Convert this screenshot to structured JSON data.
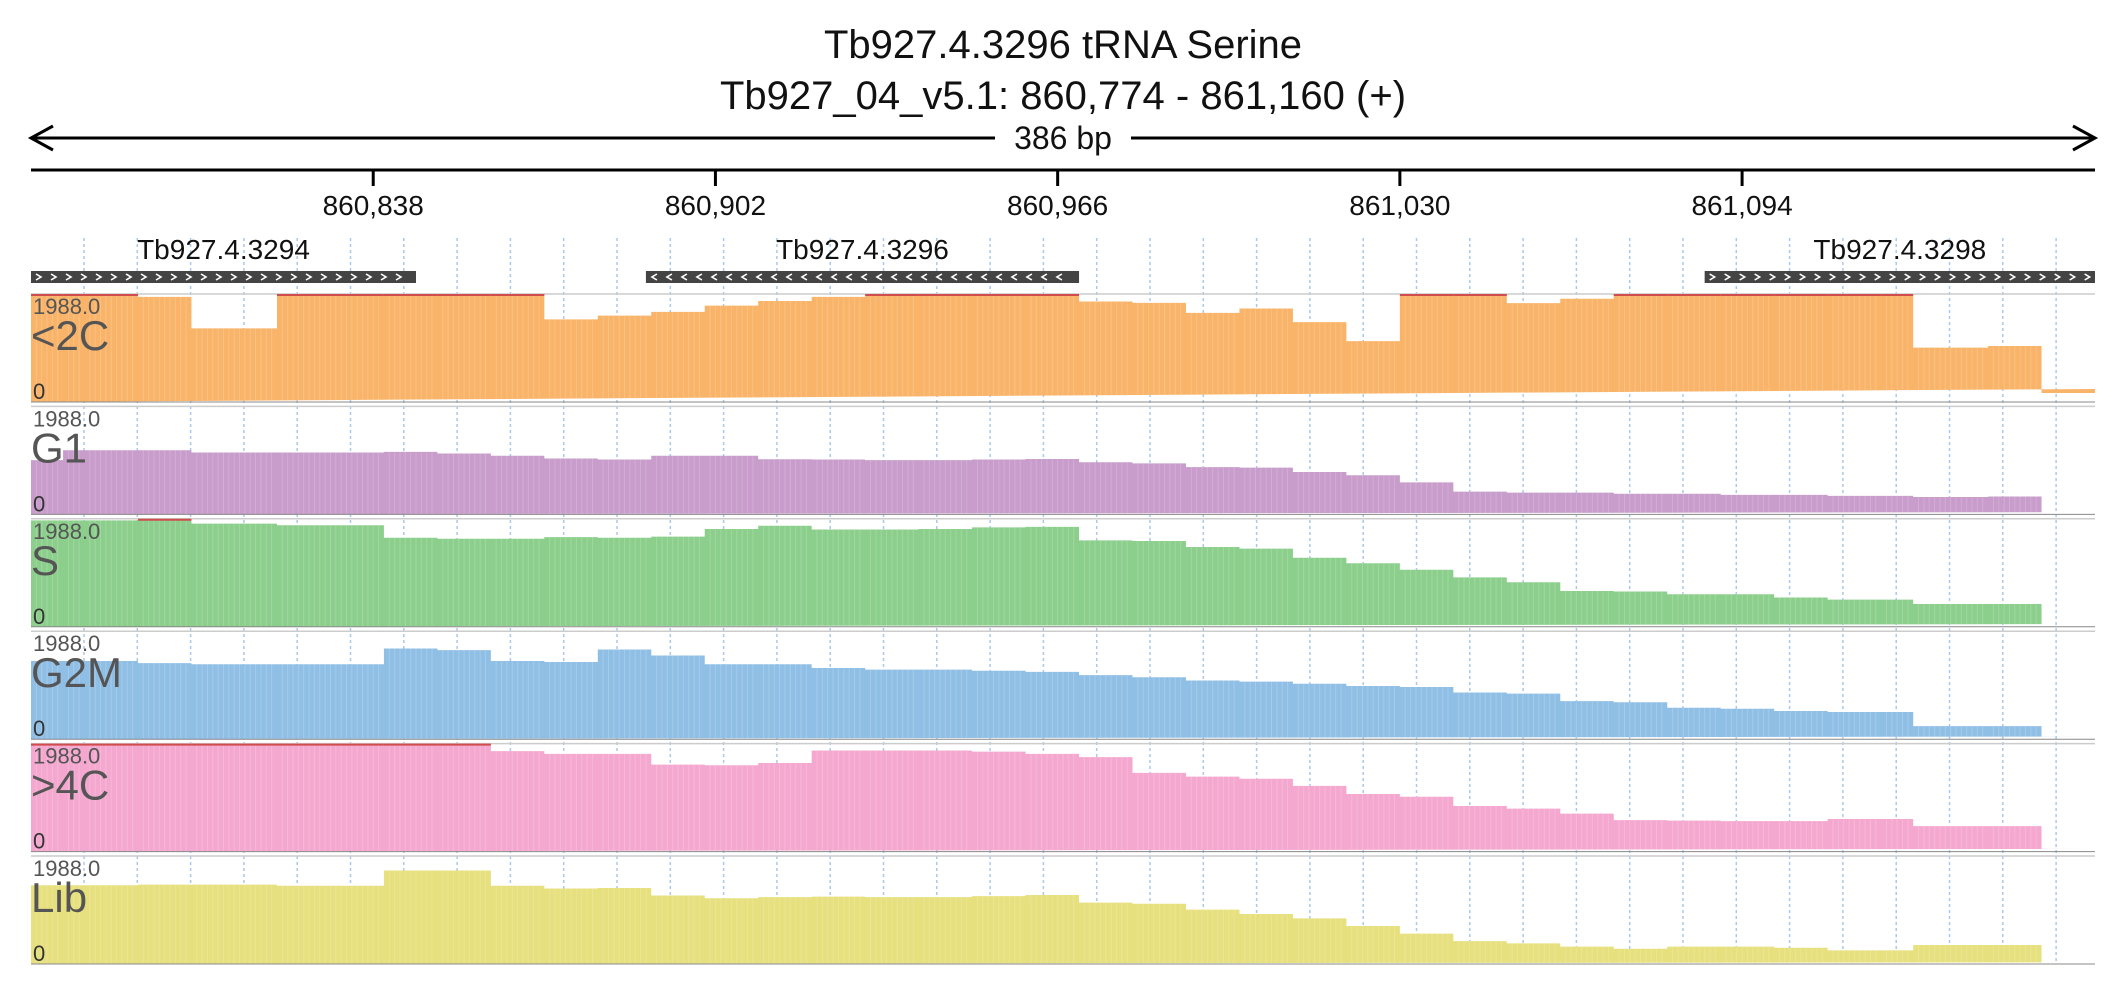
{
  "header": {
    "title_line1": "Tb927.4.3296  tRNA Serine",
    "title_line2": "Tb927_04_v5.1: 860,774 - 861,160 (+)",
    "span_label": "386 bp"
  },
  "chart_data": {
    "type": "area",
    "region": {
      "chromosome": "Tb927_04_v5.1",
      "start": 860774,
      "end": 861160,
      "strand": "+"
    },
    "x_ticks": [
      {
        "value": 860838,
        "label": "860,838"
      },
      {
        "value": 860902,
        "label": "860,902"
      },
      {
        "value": 860966,
        "label": "860,966"
      },
      {
        "value": 861030,
        "label": "861,030"
      },
      {
        "value": 861094,
        "label": "861,094"
      }
    ],
    "genes": [
      {
        "name": "Tb927.4.3294",
        "start": 860774,
        "end": 860846,
        "strand": "+"
      },
      {
        "name": "Tb927.4.3296",
        "start": 860889,
        "end": 860970,
        "strand": "-"
      },
      {
        "name": "Tb927.4.3298",
        "start": 861087,
        "end": 861160,
        "strand": "+"
      }
    ],
    "ylim": [
      0,
      1988.0
    ],
    "y_max_label": "1988.0",
    "y_min_label": "0",
    "bin_edges": [
      860774,
      860780,
      860784,
      860794,
      860804,
      860820,
      860840,
      860850,
      860860,
      860870,
      860880,
      860890,
      860900,
      860910,
      860920,
      860930,
      860940,
      860950,
      860960,
      860970,
      860980,
      860990,
      861000,
      861010,
      861020,
      861030,
      861040,
      861050,
      861060,
      861070,
      861080,
      861090,
      861100,
      861110,
      861120,
      861126,
      861140,
      861150,
      861160
    ],
    "series": [
      {
        "name": "<2C",
        "color": "#f9b469",
        "values": [
          1988,
          1988,
          1988,
          1935,
          1355,
          1988,
          1988,
          1988,
          1988,
          1520,
          1590,
          1660,
          1775,
          1860,
          1935,
          1988,
          1988,
          1988,
          1988,
          1850,
          1825,
          1640,
          1720,
          1470,
          1120,
          1988,
          1988,
          1820,
          1900,
          1988,
          1988,
          1988,
          1988,
          1988,
          1988,
          1000,
          1030,
          165,
          240
        ]
      },
      {
        "name": "G1",
        "color": "#c89ccb",
        "values": [
          1000,
          1180,
          1180,
          1180,
          1140,
          1140,
          1150,
          1120,
          1080,
          1030,
          1010,
          1080,
          1080,
          1015,
          1010,
          1000,
          1000,
          1010,
          1020,
          960,
          940,
          870,
          860,
          780,
          720,
          590,
          420,
          400,
          400,
          380,
          380,
          360,
          360,
          340,
          340,
          320,
          330,
          40,
          40
        ]
      },
      {
        "name": "S",
        "color": "#8ccf8c",
        "values": [
          1960,
          1960,
          1960,
          2000,
          1900,
          1870,
          1640,
          1620,
          1620,
          1650,
          1640,
          1660,
          1800,
          1860,
          1790,
          1790,
          1800,
          1830,
          1840,
          1590,
          1580,
          1470,
          1440,
          1270,
          1170,
          1050,
          910,
          820,
          660,
          650,
          600,
          600,
          540,
          500,
          500,
          420,
          420,
          50,
          50
        ]
      },
      {
        "name": "G2M",
        "color": "#90bfe6",
        "values": [
          1440,
          1440,
          1440,
          1400,
          1380,
          1380,
          1670,
          1640,
          1440,
          1420,
          1650,
          1540,
          1380,
          1380,
          1310,
          1280,
          1280,
          1260,
          1240,
          1180,
          1140,
          1080,
          1060,
          1020,
          980,
          960,
          860,
          840,
          700,
          680,
          580,
          560,
          520,
          500,
          500,
          240,
          240,
          50,
          50
        ]
      },
      {
        "name": ">4C",
        "color": "#f5a8cf",
        "values": [
          1988,
          1988,
          1988,
          1988,
          1988,
          1988,
          1988,
          1988,
          1850,
          1800,
          1800,
          1600,
          1590,
          1630,
          1860,
          1860,
          1860,
          1840,
          1800,
          1740,
          1450,
          1380,
          1340,
          1210,
          1060,
          1010,
          840,
          790,
          700,
          580,
          570,
          560,
          560,
          600,
          600,
          470,
          470,
          50,
          50
        ]
      },
      {
        "name": "Lib",
        "color": "#e7e07e",
        "values": [
          1450,
          1450,
          1450,
          1460,
          1460,
          1440,
          1720,
          1720,
          1440,
          1390,
          1400,
          1260,
          1210,
          1230,
          1240,
          1230,
          1230,
          1250,
          1270,
          1130,
          1110,
          1000,
          920,
          840,
          700,
          560,
          420,
          380,
          320,
          280,
          320,
          320,
          300,
          250,
          250,
          350,
          350,
          30,
          30
        ]
      }
    ]
  }
}
